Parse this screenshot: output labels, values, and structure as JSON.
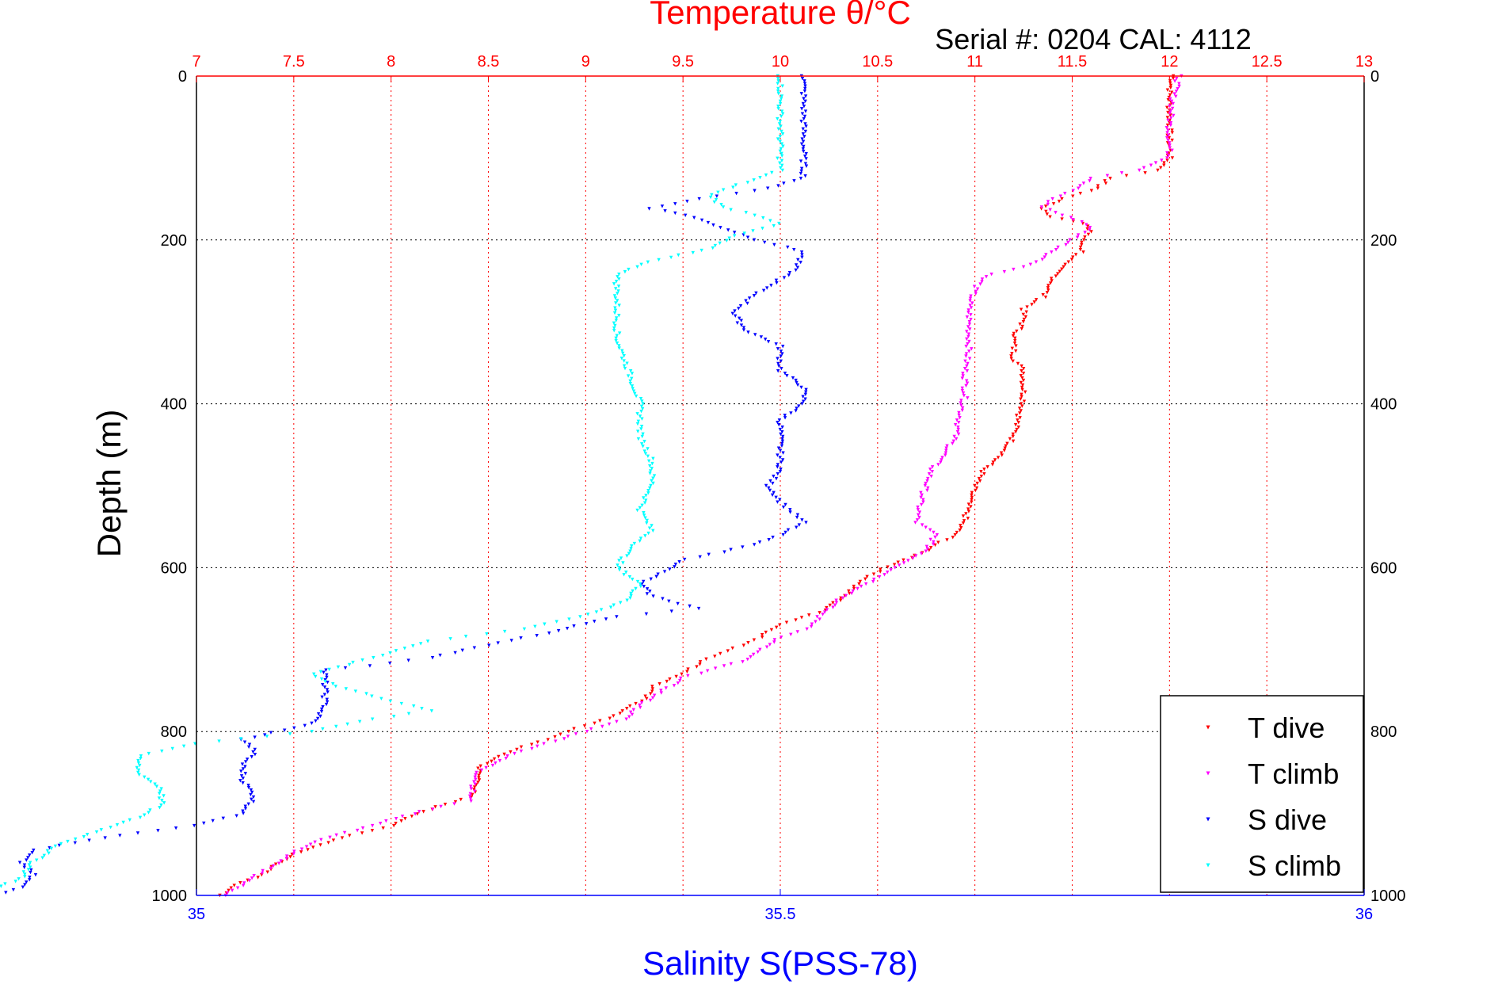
{
  "chart_data": {
    "type": "scatter",
    "title": "Temperature θ/°C",
    "subtitle": "Serial #: 0204  CAL: 4112",
    "ylabel": "Depth (m)",
    "xlabel": "Salinity S(PSS-78)",
    "temperature_axis": {
      "range": [
        7,
        13
      ],
      "ticks": [
        "7",
        "7.5",
        "8",
        "8.5",
        "9",
        "9.5",
        "10",
        "10.5",
        "11",
        "11.5",
        "12",
        "12.5",
        "13"
      ]
    },
    "salinity_axis": {
      "range": [
        35,
        36
      ],
      "ticks": [
        "35",
        "35.5",
        "36"
      ]
    },
    "depth_axis": {
      "range": [
        0,
        1000
      ],
      "reversed": true,
      "ticks": [
        "0",
        "200",
        "400",
        "600",
        "800",
        "1000"
      ]
    },
    "grid": true,
    "legend_position": "bottom-right",
    "series": [
      {
        "name": "T dive",
        "axis": "temperature",
        "color": "#ff0000",
        "points": [
          [
            12.02,
            0
          ],
          [
            12.0,
            20
          ],
          [
            12.0,
            60
          ],
          [
            12.0,
            100
          ],
          [
            11.95,
            115
          ],
          [
            11.7,
            125
          ],
          [
            11.6,
            140
          ],
          [
            11.45,
            150
          ],
          [
            11.35,
            162
          ],
          [
            11.4,
            172
          ],
          [
            11.55,
            180
          ],
          [
            11.6,
            190
          ],
          [
            11.55,
            200
          ],
          [
            11.55,
            215
          ],
          [
            11.45,
            230
          ],
          [
            11.4,
            250
          ],
          [
            11.35,
            270
          ],
          [
            11.25,
            285
          ],
          [
            11.25,
            300
          ],
          [
            11.2,
            320
          ],
          [
            11.2,
            345
          ],
          [
            11.25,
            360
          ],
          [
            11.25,
            380
          ],
          [
            11.25,
            400
          ],
          [
            11.22,
            420
          ],
          [
            11.2,
            440
          ],
          [
            11.15,
            460
          ],
          [
            11.05,
            480
          ],
          [
            11.0,
            500
          ],
          [
            10.97,
            520
          ],
          [
            10.95,
            540
          ],
          [
            10.9,
            560
          ],
          [
            10.7,
            585
          ],
          [
            10.5,
            605
          ],
          [
            10.4,
            620
          ],
          [
            10.3,
            640
          ],
          [
            10.2,
            655
          ],
          [
            10.0,
            670
          ],
          [
            9.9,
            685
          ],
          [
            9.8,
            695
          ],
          [
            9.7,
            705
          ],
          [
            9.6,
            715
          ],
          [
            9.5,
            730
          ],
          [
            9.35,
            745
          ],
          [
            9.3,
            760
          ],
          [
            9.2,
            775
          ],
          [
            9.05,
            790
          ],
          [
            8.9,
            800
          ],
          [
            8.8,
            810
          ],
          [
            8.6,
            825
          ],
          [
            8.45,
            845
          ],
          [
            8.45,
            865
          ],
          [
            8.4,
            880
          ],
          [
            8.2,
            895
          ],
          [
            8.0,
            915
          ],
          [
            7.75,
            930
          ],
          [
            7.5,
            950
          ],
          [
            7.4,
            965
          ],
          [
            7.35,
            975
          ],
          [
            7.2,
            988
          ],
          [
            7.12,
            1000
          ]
        ]
      },
      {
        "name": "T climb",
        "axis": "temperature",
        "color": "#ff00ff",
        "points": [
          [
            12.05,
            0
          ],
          [
            12.02,
            25
          ],
          [
            12.0,
            60
          ],
          [
            12.0,
            100
          ],
          [
            11.85,
            115
          ],
          [
            11.6,
            125
          ],
          [
            11.5,
            140
          ],
          [
            11.4,
            150
          ],
          [
            11.35,
            160
          ],
          [
            11.45,
            170
          ],
          [
            11.55,
            178
          ],
          [
            11.6,
            185
          ],
          [
            11.5,
            200
          ],
          [
            11.4,
            215
          ],
          [
            11.3,
            230
          ],
          [
            11.05,
            245
          ],
          [
            11.0,
            260
          ],
          [
            10.97,
            280
          ],
          [
            10.97,
            300
          ],
          [
            10.97,
            330
          ],
          [
            10.95,
            360
          ],
          [
            10.95,
            390
          ],
          [
            10.92,
            420
          ],
          [
            10.9,
            440
          ],
          [
            10.85,
            460
          ],
          [
            10.78,
            480
          ],
          [
            10.75,
            500
          ],
          [
            10.72,
            520
          ],
          [
            10.7,
            545
          ],
          [
            10.8,
            560
          ],
          [
            10.75,
            580
          ],
          [
            10.6,
            600
          ],
          [
            10.45,
            620
          ],
          [
            10.3,
            640
          ],
          [
            10.2,
            660
          ],
          [
            10.15,
            675
          ],
          [
            10.0,
            685
          ],
          [
            9.9,
            700
          ],
          [
            9.8,
            715
          ],
          [
            9.7,
            720
          ],
          [
            9.5,
            735
          ],
          [
            9.4,
            750
          ],
          [
            9.3,
            765
          ],
          [
            9.2,
            785
          ],
          [
            9.0,
            800
          ],
          [
            8.8,
            815
          ],
          [
            8.6,
            830
          ],
          [
            8.45,
            850
          ],
          [
            8.42,
            870
          ],
          [
            8.4,
            885
          ],
          [
            8.2,
            895
          ],
          [
            7.9,
            915
          ],
          [
            7.6,
            935
          ],
          [
            7.45,
            955
          ],
          [
            7.35,
            970
          ],
          [
            7.25,
            985
          ],
          [
            7.15,
            1000
          ]
        ]
      },
      {
        "name": "S dive",
        "axis": "salinity",
        "color": "#0000ff",
        "points": [
          [
            35.52,
            0
          ],
          [
            35.52,
            40
          ],
          [
            35.52,
            80
          ],
          [
            35.52,
            125
          ],
          [
            35.48,
            140
          ],
          [
            35.43,
            150
          ],
          [
            35.39,
            162
          ],
          [
            35.42,
            170
          ],
          [
            35.45,
            185
          ],
          [
            35.48,
            200
          ],
          [
            35.52,
            215
          ],
          [
            35.51,
            240
          ],
          [
            35.48,
            265
          ],
          [
            35.46,
            290
          ],
          [
            35.47,
            310
          ],
          [
            35.5,
            330
          ],
          [
            35.5,
            360
          ],
          [
            35.52,
            380
          ],
          [
            35.52,
            400
          ],
          [
            35.5,
            420
          ],
          [
            35.5,
            440
          ],
          [
            35.5,
            460
          ],
          [
            35.5,
            480
          ],
          [
            35.49,
            500
          ],
          [
            35.5,
            520
          ],
          [
            35.52,
            545
          ],
          [
            35.5,
            560
          ],
          [
            35.47,
            575
          ],
          [
            35.42,
            590
          ],
          [
            35.4,
            605
          ],
          [
            35.38,
            620
          ],
          [
            35.39,
            635
          ],
          [
            35.43,
            650
          ],
          [
            35.36,
            660
          ],
          [
            35.3,
            680
          ],
          [
            35.25,
            695
          ],
          [
            35.2,
            710
          ],
          [
            35.15,
            720
          ],
          [
            35.11,
            725
          ],
          [
            35.11,
            740
          ],
          [
            35.11,
            755
          ],
          [
            35.11,
            770
          ],
          [
            35.1,
            790
          ],
          [
            35.04,
            810
          ],
          [
            35.05,
            825
          ],
          [
            35.04,
            840
          ],
          [
            35.04,
            860
          ],
          [
            35.05,
            880
          ],
          [
            35.04,
            900
          ],
          [
            35.0,
            915
          ],
          [
            34.92,
            930
          ],
          [
            34.86,
            945
          ],
          [
            34.85,
            960
          ],
          [
            34.86,
            975
          ],
          [
            34.85,
            990
          ],
          [
            34.83,
            1000
          ]
        ]
      },
      {
        "name": "S climb",
        "axis": "salinity",
        "color": "#00ffff",
        "points": [
          [
            35.5,
            0
          ],
          [
            35.5,
            40
          ],
          [
            35.5,
            80
          ],
          [
            35.5,
            115
          ],
          [
            35.47,
            130
          ],
          [
            35.44,
            145
          ],
          [
            35.45,
            160
          ],
          [
            35.48,
            170
          ],
          [
            35.5,
            180
          ],
          [
            35.46,
            195
          ],
          [
            35.44,
            210
          ],
          [
            35.38,
            230
          ],
          [
            35.36,
            245
          ],
          [
            35.36,
            280
          ],
          [
            35.36,
            320
          ],
          [
            35.37,
            360
          ],
          [
            35.38,
            400
          ],
          [
            35.38,
            440
          ],
          [
            35.39,
            470
          ],
          [
            35.39,
            500
          ],
          [
            35.38,
            530
          ],
          [
            35.39,
            555
          ],
          [
            35.37,
            580
          ],
          [
            35.36,
            600
          ],
          [
            35.38,
            620
          ],
          [
            35.37,
            640
          ],
          [
            35.33,
            660
          ],
          [
            35.28,
            675
          ],
          [
            35.2,
            690
          ],
          [
            35.15,
            710
          ],
          [
            35.1,
            730
          ],
          [
            35.12,
            745
          ],
          [
            35.16,
            760
          ],
          [
            35.2,
            775
          ],
          [
            35.15,
            785
          ],
          [
            35.1,
            800
          ],
          [
            35.0,
            815
          ],
          [
            34.95,
            830
          ],
          [
            34.95,
            850
          ],
          [
            34.97,
            870
          ],
          [
            34.97,
            890
          ],
          [
            34.95,
            905
          ],
          [
            34.92,
            920
          ],
          [
            34.88,
            940
          ],
          [
            34.86,
            960
          ],
          [
            34.85,
            980
          ],
          [
            34.82,
            995
          ],
          [
            34.82,
            1000
          ]
        ]
      }
    ]
  }
}
